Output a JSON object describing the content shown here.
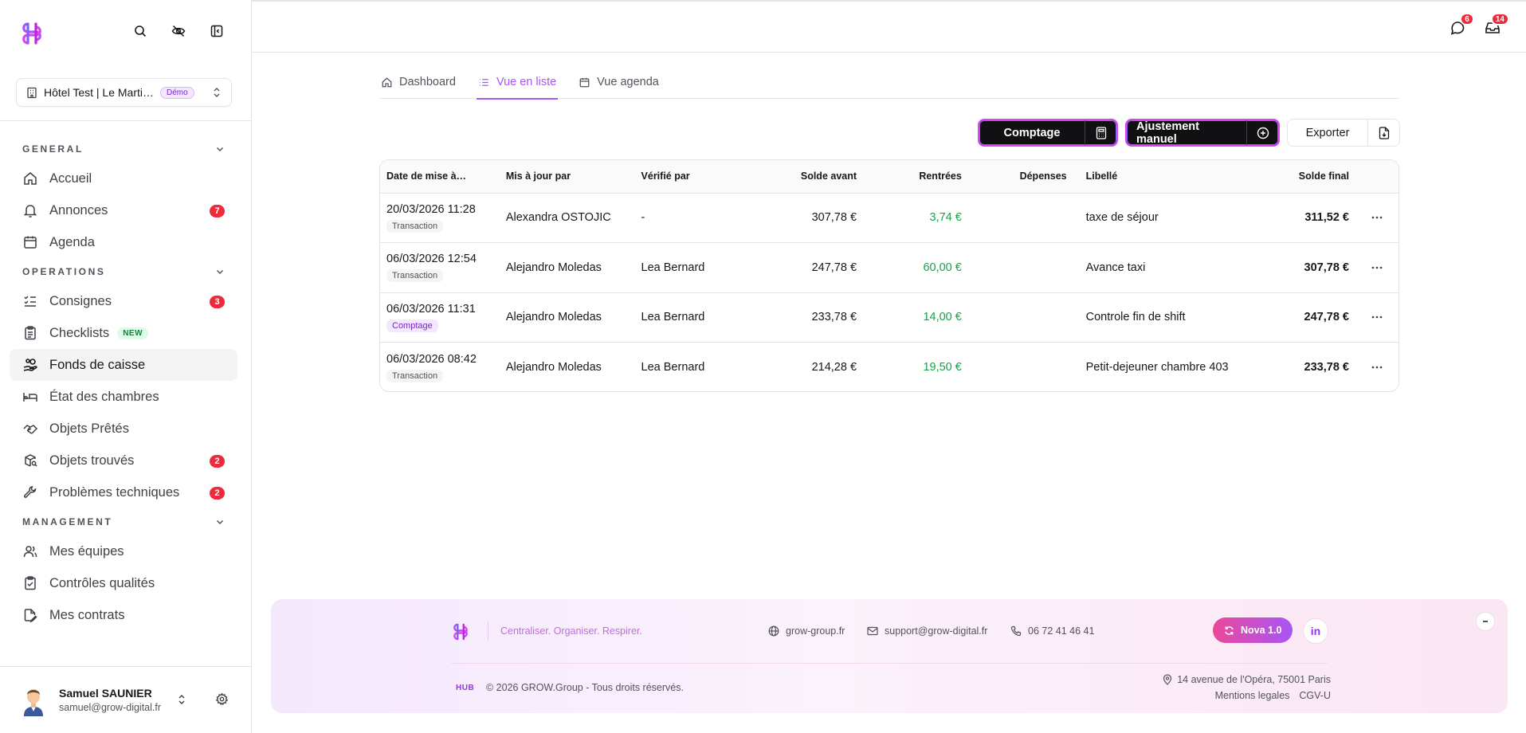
{
  "sidebar": {
    "hotel": {
      "name": "Hôtel Test | Le Marti…",
      "badge": "Démo"
    },
    "sections": [
      {
        "title": "GENERAL",
        "items": [
          {
            "label": "Accueil"
          },
          {
            "label": "Annonces",
            "count": "7"
          },
          {
            "label": "Agenda"
          }
        ]
      },
      {
        "title": "OPERATIONS",
        "items": [
          {
            "label": "Consignes",
            "count": "3"
          },
          {
            "label": "Checklists",
            "badge": "NEW"
          },
          {
            "label": "Fonds de caisse"
          },
          {
            "label": "État des chambres"
          },
          {
            "label": "Objets Prêtés"
          },
          {
            "label": "Objets trouvés",
            "count": "2"
          },
          {
            "label": "Problèmes techniques",
            "count": "2"
          }
        ]
      },
      {
        "title": "MANAGEMENT",
        "items": [
          {
            "label": "Mes équipes"
          },
          {
            "label": "Contrôles qualités"
          },
          {
            "label": "Mes contrats"
          }
        ]
      }
    ],
    "user": {
      "name": "Samuel SAUNIER",
      "email": "samuel@grow-digital.fr"
    }
  },
  "topbar": {
    "messages_count": "6",
    "inbox_count": "14"
  },
  "tabs": [
    {
      "label": "Dashboard"
    },
    {
      "label": "Vue en liste"
    },
    {
      "label": "Vue agenda"
    }
  ],
  "actions": {
    "comptage": "Comptage",
    "ajustement": "Ajustement manuel",
    "exporter": "Exporter"
  },
  "table": {
    "headers": {
      "date": "Date de mise à…",
      "updated_by": "Mis à jour par",
      "verified_by": "Vérifié par",
      "before": "Solde avant",
      "in": "Rentrées",
      "out": "Dépenses",
      "label": "Libellé",
      "final": "Solde final"
    },
    "rows": [
      {
        "date": "20/03/2026 11:28",
        "type": "Transaction",
        "updated_by": "Alexandra OSTOJIC",
        "verified_by": "-",
        "before": "307,78 €",
        "in": "3,74 €",
        "out": "",
        "label": "taxe de séjour",
        "final": "311,52 €"
      },
      {
        "date": "06/03/2026 12:54",
        "type": "Transaction",
        "updated_by": "Alejandro Moledas",
        "verified_by": "Lea Bernard",
        "before": "247,78 €",
        "in": "60,00 €",
        "out": "",
        "label": "Avance taxi",
        "final": "307,78 €"
      },
      {
        "date": "06/03/2026 11:31",
        "type": "Comptage",
        "updated_by": "Alejandro Moledas",
        "verified_by": "Lea Bernard",
        "before": "233,78 €",
        "in": "14,00 €",
        "out": "",
        "label": "Controle fin de shift",
        "final": "247,78 €"
      },
      {
        "date": "06/03/2026 08:42",
        "type": "Transaction",
        "updated_by": "Alejandro Moledas",
        "verified_by": "Lea Bernard",
        "before": "214,28 €",
        "in": "19,50 €",
        "out": "",
        "label": "Petit-dejeuner chambre 403",
        "final": "233,78 €"
      }
    ]
  },
  "footer": {
    "slogan": "Centraliser. Organiser. Respirer.",
    "website": "grow-group.fr",
    "email": "support@grow-digital.fr",
    "phone": "06 72 41 46 41",
    "nova": "Nova 1.0",
    "linkedin": "in",
    "hub": "HUB",
    "copyright": "© 2026 GROW.Group - Tous droits réservés.",
    "address": "14 avenue de l'Opéra, 75001 Paris",
    "legal": "Mentions legales",
    "cgv": "CGV-U"
  }
}
